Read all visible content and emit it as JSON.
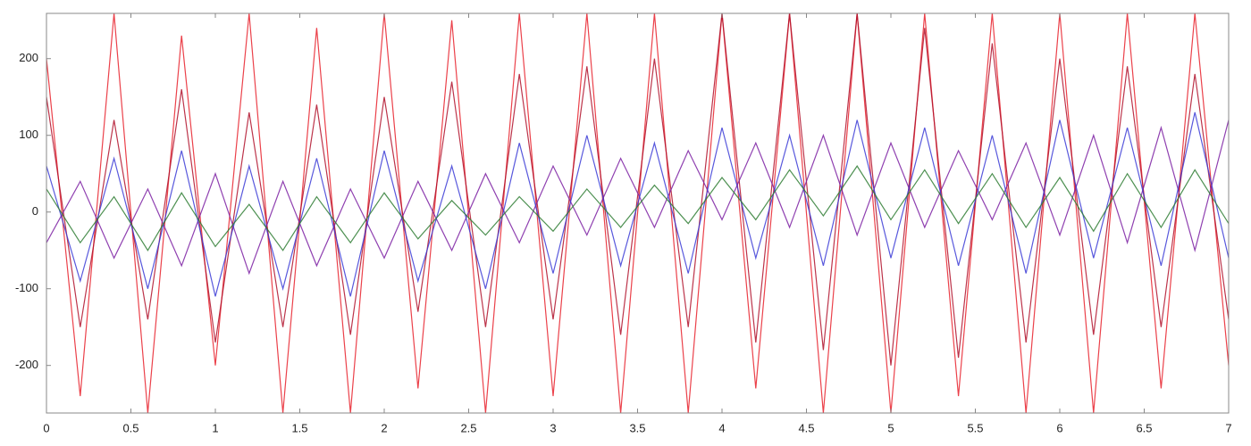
{
  "chart_data": {
    "type": "line",
    "x": [
      0,
      0.2,
      0.4,
      0.6,
      0.8,
      1,
      1.2,
      1.4,
      1.6,
      1.8,
      2,
      2.2,
      2.4,
      2.6,
      2.8,
      3,
      3.2,
      3.4,
      3.6,
      3.8,
      4,
      4.2,
      4.4,
      4.6,
      4.8,
      5,
      5.2,
      5.4,
      5.6,
      5.8,
      6,
      6.2,
      6.4,
      6.6,
      6.8,
      7
    ],
    "series": [
      {
        "color": "#e8202a",
        "values": [
          200,
          -240,
          259,
          -262,
          230,
          -200,
          259,
          -262,
          240,
          -262,
          259,
          -230,
          250,
          -262,
          259,
          -240,
          259,
          -262,
          259,
          -262,
          259,
          -230,
          259,
          -262,
          259,
          -262,
          259,
          -240,
          259,
          -262,
          259,
          -262,
          259,
          -230,
          259,
          -200
        ]
      },
      {
        "color": "#b0102a",
        "values": [
          150,
          -150,
          120,
          -140,
          160,
          -170,
          130,
          -150,
          140,
          -160,
          150,
          -130,
          170,
          -150,
          180,
          -140,
          190,
          -160,
          200,
          -150,
          259,
          -170,
          259,
          -180,
          259,
          -200,
          240,
          -190,
          220,
          -170,
          200,
          -160,
          190,
          -150,
          180,
          -140
        ]
      },
      {
        "color": "#7b1fa2",
        "values": [
          -40,
          40,
          -60,
          30,
          -70,
          50,
          -80,
          40,
          -70,
          30,
          -60,
          40,
          -50,
          50,
          -40,
          60,
          -30,
          70,
          -20,
          80,
          -10,
          90,
          -20,
          100,
          -30,
          90,
          -20,
          80,
          -10,
          90,
          -30,
          100,
          -40,
          110,
          -50,
          120
        ]
      },
      {
        "color": "#3b3bd6",
        "values": [
          60,
          -90,
          70,
          -100,
          80,
          -110,
          60,
          -100,
          70,
          -110,
          80,
          -90,
          60,
          -100,
          90,
          -80,
          100,
          -70,
          90,
          -80,
          110,
          -60,
          100,
          -70,
          120,
          -60,
          110,
          -70,
          100,
          -80,
          120,
          -60,
          110,
          -70,
          130,
          -60
        ]
      },
      {
        "color": "#2e7d32",
        "values": [
          30,
          -40,
          20,
          -50,
          25,
          -45,
          10,
          -50,
          20,
          -40,
          25,
          -35,
          15,
          -30,
          20,
          -25,
          30,
          -20,
          35,
          -15,
          45,
          -10,
          55,
          -5,
          60,
          -10,
          55,
          -15,
          50,
          -20,
          45,
          -25,
          50,
          -20,
          55,
          -15
        ]
      }
    ],
    "xlim": [
      0,
      7
    ],
    "xticks": [
      0,
      0.5,
      1,
      1.5,
      2,
      2.5,
      3,
      3.5,
      4,
      4.5,
      5,
      5.5,
      6,
      6.5,
      7
    ],
    "ylim": [
      -262,
      259
    ],
    "yticks": [
      -200,
      -100,
      0,
      100,
      200
    ],
    "grid": false
  }
}
